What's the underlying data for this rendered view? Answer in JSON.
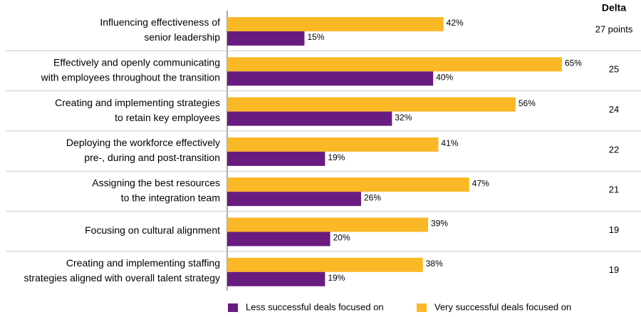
{
  "chart_data": {
    "type": "bar",
    "orientation": "horizontal",
    "categories": [
      [
        "Influencing effectiveness of",
        "senior leadership"
      ],
      [
        "Effectively and openly communicating",
        "with employees throughout the transition"
      ],
      [
        "Creating and implementing strategies",
        "to retain key employees"
      ],
      [
        "Deploying the workforce effectively",
        "pre-, during and post-transition"
      ],
      [
        "Assigning the best resources",
        "to the integration team"
      ],
      [
        "Focusing on cultural alignment"
      ],
      [
        "Creating and implementing staffing",
        "strategies aligned with overall talent strategy"
      ]
    ],
    "series": [
      {
        "name": "Very successful deals focused on",
        "color": "#fbb826",
        "values": [
          42,
          65,
          56,
          41,
          47,
          39,
          38
        ],
        "value_labels": [
          "42%",
          "65%",
          "56%",
          "41%",
          "47%",
          "39%",
          "38%"
        ]
      },
      {
        "name": "Less successful deals focused on",
        "color": "#6a1b7f",
        "values": [
          15,
          40,
          32,
          19,
          26,
          20,
          19
        ],
        "value_labels": [
          "15%",
          "40%",
          "32%",
          "19%",
          "26%",
          "20%",
          "19%"
        ]
      }
    ],
    "delta": {
      "title": "Delta",
      "values": [
        27,
        25,
        24,
        22,
        21,
        19,
        19
      ],
      "value_labels": [
        "27 points",
        "25",
        "24",
        "22",
        "21",
        "19",
        "19"
      ]
    },
    "legend": "bottom"
  }
}
